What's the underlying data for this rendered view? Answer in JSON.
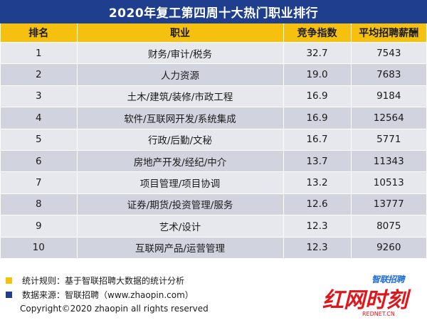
{
  "title": "2020年复工第四周十大热门职业排行",
  "table": {
    "headers": [
      "排名",
      "职业",
      "竞争指数",
      "平均招聘薪酬"
    ],
    "rows": [
      [
        "1",
        "财务/审计/税务",
        "32.7",
        "7543"
      ],
      [
        "2",
        "人力资源",
        "19.0",
        "7683"
      ],
      [
        "3",
        "土木/建筑/装修/市政工程",
        "16.9",
        "9184"
      ],
      [
        "4",
        "软件/互联网开发/系统集成",
        "16.9",
        "12564"
      ],
      [
        "5",
        "行政/后勤/文秘",
        "16.7",
        "5771"
      ],
      [
        "6",
        "房地产开发/经纪/中介",
        "13.7",
        "11343"
      ],
      [
        "7",
        "项目管理/项目协调",
        "13.2",
        "10513"
      ],
      [
        "8",
        "证券/期货/投资管理/服务",
        "12.6",
        "13777"
      ],
      [
        "9",
        "艺术/设计",
        "12.3",
        "8075"
      ],
      [
        "10",
        "互联网产品/运营管理",
        "12.3",
        "9260"
      ]
    ]
  },
  "footer": {
    "rule": "统计规则：基于智联招聘大数据的统计分析",
    "source": "数据来源：智联招聘（www.zhaopin.com）",
    "copyright": "Copyright©2020 zhaopin all rights reserved"
  },
  "logos": {
    "zhaopin": "智联招聘",
    "rednet": "红网时刻",
    "rednet_sub": "REDNET.CN"
  },
  "colors": {
    "title_bg": "#1f3f8e",
    "header_bg": "#f5c10e",
    "rule_marker": "#f5c10e",
    "source_marker": "#1f3f8e",
    "rednet_red": "#e0161b"
  }
}
